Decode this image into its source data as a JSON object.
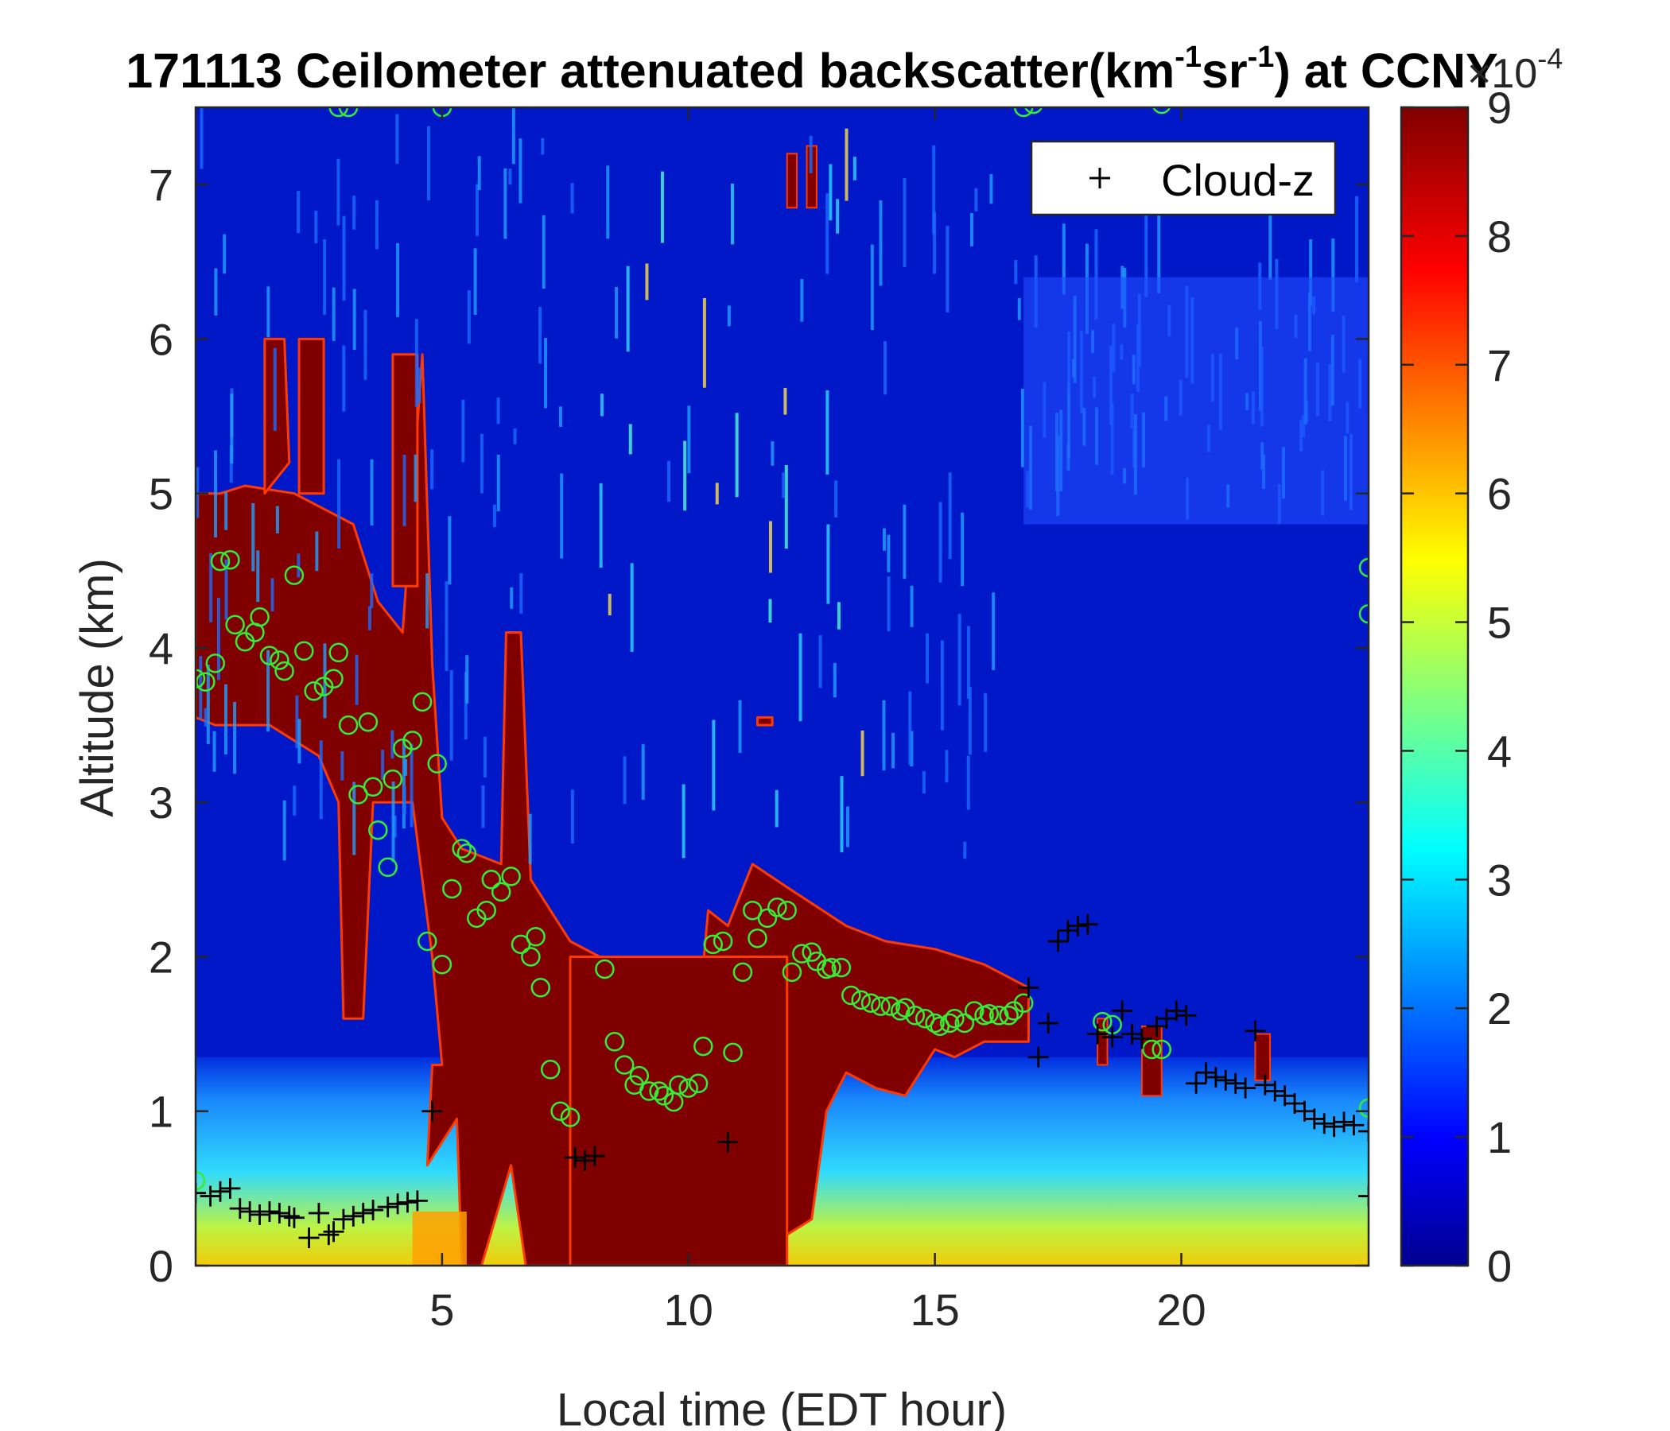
{
  "chart_data": {
    "type": "heatmap",
    "title_main": "171113 Ceilometer attenuated backscatter(km",
    "title_sup1": "-1",
    "title_mid": "sr",
    "title_sup2": "-1",
    "title_end": ") at CCNY",
    "xlabel": "Local time (EDT hour)",
    "ylabel": "Altitude (km)",
    "xlim": [
      0,
      23.8
    ],
    "ylim": [
      0,
      7.5
    ],
    "xticks": [
      5,
      10,
      15,
      20
    ],
    "yticks": [
      0,
      1,
      2,
      3,
      4,
      5,
      6,
      7
    ],
    "colorbar": {
      "colormap": "jet",
      "min": 0,
      "max": 9,
      "ticks": [
        0,
        1,
        2,
        3,
        4,
        5,
        6,
        7,
        8,
        9
      ],
      "exponent_base": "×10",
      "exponent": "-4"
    },
    "legend": {
      "position": "top-right",
      "entries": [
        {
          "marker": "+",
          "label": "Cloud-z"
        }
      ]
    },
    "colors": {
      "cloud_marker": "#000000",
      "pbl_marker": "#33ee33"
    },
    "cloud_z": [
      [
        0.0,
        0.47
      ],
      [
        0.3,
        0.45
      ],
      [
        0.5,
        0.48
      ],
      [
        0.7,
        0.5
      ],
      [
        0.9,
        0.37
      ],
      [
        1.1,
        0.35
      ],
      [
        1.3,
        0.33
      ],
      [
        1.5,
        0.35
      ],
      [
        1.7,
        0.34
      ],
      [
        1.9,
        0.32
      ],
      [
        2.0,
        0.31
      ],
      [
        2.3,
        0.18
      ],
      [
        2.5,
        0.34
      ],
      [
        2.7,
        0.2
      ],
      [
        2.8,
        0.22
      ],
      [
        3.0,
        0.3
      ],
      [
        3.2,
        0.32
      ],
      [
        3.4,
        0.34
      ],
      [
        3.6,
        0.36
      ],
      [
        3.9,
        0.38
      ],
      [
        4.1,
        0.4
      ],
      [
        4.3,
        0.41
      ],
      [
        4.5,
        0.42
      ],
      [
        4.8,
        1.0
      ],
      [
        7.7,
        0.7
      ],
      [
        7.9,
        0.68
      ],
      [
        8.1,
        0.71
      ],
      [
        10.8,
        0.8
      ],
      [
        16.9,
        1.8
      ],
      [
        17.1,
        1.35
      ],
      [
        17.3,
        1.57
      ],
      [
        17.5,
        2.1
      ],
      [
        17.7,
        2.17
      ],
      [
        17.9,
        2.2
      ],
      [
        18.1,
        2.21
      ],
      [
        18.3,
        1.5
      ],
      [
        18.6,
        1.48
      ],
      [
        18.8,
        1.65
      ],
      [
        19.0,
        1.5
      ],
      [
        19.2,
        1.47
      ],
      [
        19.5,
        1.55
      ],
      [
        19.7,
        1.6
      ],
      [
        19.9,
        1.65
      ],
      [
        20.1,
        1.62
      ],
      [
        20.3,
        1.18
      ],
      [
        20.5,
        1.25
      ],
      [
        20.7,
        1.22
      ],
      [
        20.9,
        1.2
      ],
      [
        21.1,
        1.18
      ],
      [
        21.3,
        1.15
      ],
      [
        21.5,
        1.52
      ],
      [
        21.7,
        1.17
      ],
      [
        21.9,
        1.13
      ],
      [
        22.1,
        1.1
      ],
      [
        22.3,
        1.05
      ],
      [
        22.5,
        1.0
      ],
      [
        22.7,
        0.95
      ],
      [
        22.9,
        0.92
      ],
      [
        23.1,
        0.9
      ],
      [
        23.3,
        0.93
      ],
      [
        23.5,
        0.91
      ],
      [
        23.8,
        0.87
      ],
      [
        23.8,
        0.45
      ]
    ],
    "pbl_circles": [
      [
        0.0,
        0.55
      ],
      [
        0.0,
        3.8
      ],
      [
        0.2,
        3.78
      ],
      [
        0.4,
        3.9
      ],
      [
        0.5,
        4.56
      ],
      [
        0.7,
        4.57
      ],
      [
        0.8,
        4.15
      ],
      [
        1.0,
        4.04
      ],
      [
        1.2,
        4.1
      ],
      [
        1.3,
        4.2
      ],
      [
        1.5,
        3.95
      ],
      [
        1.7,
        3.92
      ],
      [
        1.8,
        3.85
      ],
      [
        2.0,
        4.47
      ],
      [
        2.2,
        3.98
      ],
      [
        2.4,
        3.72
      ],
      [
        2.6,
        3.75
      ],
      [
        2.8,
        3.8
      ],
      [
        2.9,
        3.97
      ],
      [
        3.1,
        3.5
      ],
      [
        3.3,
        3.05
      ],
      [
        3.5,
        3.52
      ],
      [
        3.6,
        3.1
      ],
      [
        3.7,
        2.82
      ],
      [
        3.9,
        2.58
      ],
      [
        4.0,
        3.15
      ],
      [
        4.2,
        3.35
      ],
      [
        4.4,
        3.4
      ],
      [
        4.6,
        3.65
      ],
      [
        4.9,
        3.25
      ],
      [
        4.7,
        2.1
      ],
      [
        5.0,
        1.95
      ],
      [
        5.2,
        2.44
      ],
      [
        5.4,
        2.7
      ],
      [
        5.5,
        2.67
      ],
      [
        5.7,
        2.25
      ],
      [
        5.9,
        2.3
      ],
      [
        6.0,
        2.5
      ],
      [
        6.2,
        2.42
      ],
      [
        6.4,
        2.52
      ],
      [
        6.6,
        2.08
      ],
      [
        6.8,
        2.0
      ],
      [
        6.9,
        2.13
      ],
      [
        7.0,
        1.8
      ],
      [
        7.2,
        1.27
      ],
      [
        7.4,
        1.0
      ],
      [
        7.6,
        0.96
      ],
      [
        8.3,
        1.92
      ],
      [
        8.5,
        1.45
      ],
      [
        8.7,
        1.3
      ],
      [
        8.9,
        1.17
      ],
      [
        9.0,
        1.23
      ],
      [
        9.2,
        1.13
      ],
      [
        9.4,
        1.13
      ],
      [
        9.5,
        1.1
      ],
      [
        9.7,
        1.06
      ],
      [
        9.8,
        1.17
      ],
      [
        10.0,
        1.15
      ],
      [
        10.2,
        1.18
      ],
      [
        10.3,
        1.42
      ],
      [
        10.5,
        2.08
      ],
      [
        10.7,
        2.1
      ],
      [
        10.9,
        1.38
      ],
      [
        11.1,
        1.9
      ],
      [
        11.3,
        2.3
      ],
      [
        11.4,
        2.12
      ],
      [
        11.6,
        2.25
      ],
      [
        11.8,
        2.32
      ],
      [
        12.0,
        2.3
      ],
      [
        12.1,
        1.9
      ],
      [
        12.3,
        2.02
      ],
      [
        12.5,
        2.03
      ],
      [
        12.6,
        1.97
      ],
      [
        12.8,
        1.92
      ],
      [
        12.9,
        1.93
      ],
      [
        13.1,
        1.93
      ],
      [
        13.3,
        1.75
      ],
      [
        13.5,
        1.72
      ],
      [
        13.7,
        1.7
      ],
      [
        13.9,
        1.68
      ],
      [
        14.1,
        1.68
      ],
      [
        14.3,
        1.65
      ],
      [
        14.4,
        1.67
      ],
      [
        14.6,
        1.62
      ],
      [
        14.8,
        1.6
      ],
      [
        15.0,
        1.57
      ],
      [
        15.1,
        1.55
      ],
      [
        15.3,
        1.57
      ],
      [
        15.4,
        1.6
      ],
      [
        15.6,
        1.57
      ],
      [
        15.8,
        1.65
      ],
      [
        16.0,
        1.62
      ],
      [
        16.1,
        1.63
      ],
      [
        16.3,
        1.62
      ],
      [
        16.5,
        1.62
      ],
      [
        16.6,
        1.65
      ],
      [
        16.8,
        1.7
      ],
      [
        18.4,
        1.58
      ],
      [
        18.6,
        1.56
      ],
      [
        19.4,
        1.4
      ],
      [
        19.6,
        1.4
      ],
      [
        23.8,
        1.02
      ],
      [
        23.8,
        4.22
      ],
      [
        23.8,
        4.52
      ],
      [
        2.9,
        7.5
      ],
      [
        3.1,
        7.5
      ],
      [
        5.0,
        7.5
      ],
      [
        16.8,
        7.5
      ],
      [
        17.0,
        7.52
      ],
      [
        19.6,
        7.52
      ]
    ]
  }
}
